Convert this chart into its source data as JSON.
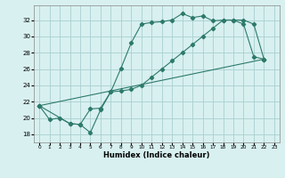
{
  "xlabel": "Humidex (Indice chaleur)",
  "bg_color": "#d8f0f0",
  "grid_color": "#aacfcf",
  "line_color": "#2d7a6a",
  "xlim": [
    -0.5,
    23.5
  ],
  "ylim": [
    17.0,
    33.8
  ],
  "xticks": [
    0,
    1,
    2,
    3,
    4,
    5,
    6,
    7,
    8,
    9,
    10,
    11,
    12,
    13,
    14,
    15,
    16,
    17,
    18,
    19,
    20,
    21,
    22,
    23
  ],
  "yticks": [
    18,
    20,
    22,
    24,
    26,
    28,
    30,
    32
  ],
  "line1_x": [
    0,
    1,
    2,
    3,
    4,
    5,
    6,
    7,
    8,
    9,
    10,
    11,
    12,
    13,
    14,
    15,
    16,
    17,
    18,
    19,
    20,
    21,
    22
  ],
  "line1_y": [
    21.5,
    19.8,
    20.0,
    19.3,
    19.2,
    18.2,
    21.0,
    23.2,
    26.1,
    29.2,
    31.5,
    31.7,
    31.8,
    32.0,
    32.8,
    32.3,
    32.5,
    31.9,
    32.0,
    32.0,
    31.5,
    27.5,
    27.2
  ],
  "line2_x": [
    0,
    3,
    4,
    5,
    6,
    7,
    8,
    9,
    10,
    11,
    12,
    13,
    14,
    15,
    16,
    17,
    18,
    19,
    20,
    21,
    22
  ],
  "line2_y": [
    21.5,
    19.3,
    19.2,
    21.1,
    21.2,
    23.2,
    23.3,
    23.5,
    24.0,
    25.0,
    26.0,
    27.0,
    28.0,
    29.0,
    30.0,
    31.0,
    32.0,
    32.0,
    32.0,
    31.5,
    27.2
  ],
  "line3_x": [
    0,
    22
  ],
  "line3_y": [
    21.5,
    27.2
  ],
  "marker": "D",
  "markersize": 2.2,
  "linewidth": 0.8
}
